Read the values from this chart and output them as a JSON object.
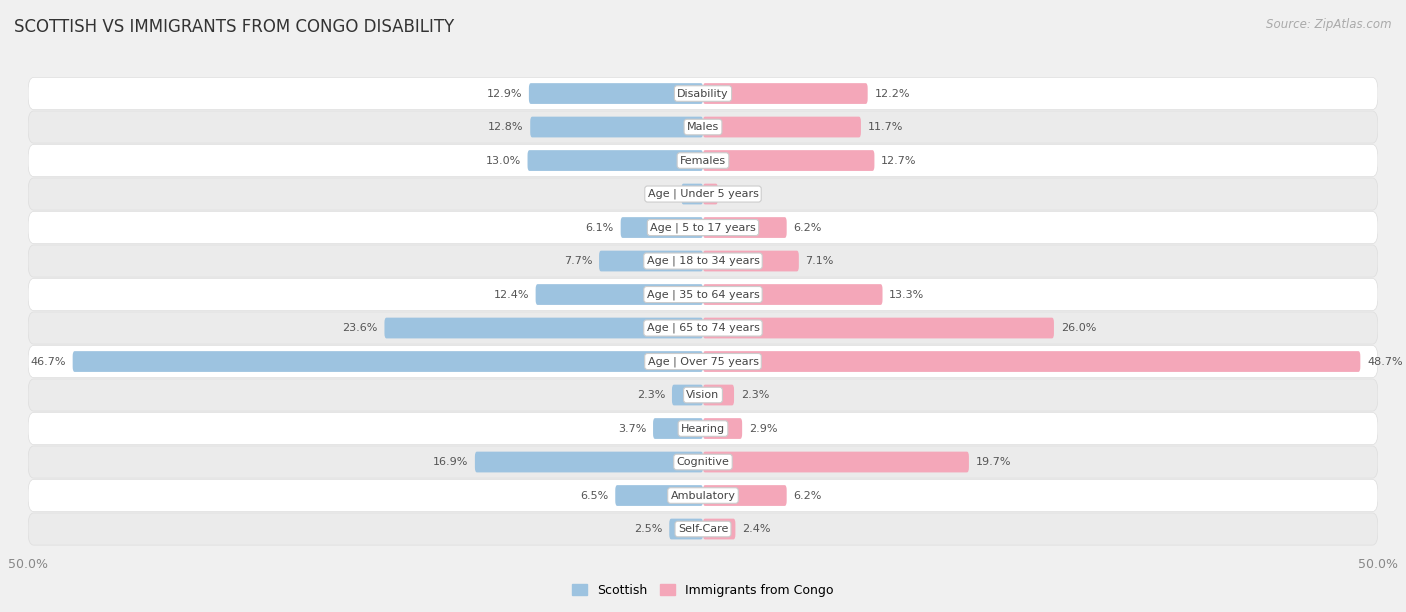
{
  "title": "SCOTTISH VS IMMIGRANTS FROM CONGO DISABILITY",
  "source": "Source: ZipAtlas.com",
  "categories": [
    "Disability",
    "Males",
    "Females",
    "Age | Under 5 years",
    "Age | 5 to 17 years",
    "Age | 18 to 34 years",
    "Age | 35 to 64 years",
    "Age | 65 to 74 years",
    "Age | Over 75 years",
    "Vision",
    "Hearing",
    "Cognitive",
    "Ambulatory",
    "Self-Care"
  ],
  "scottish": [
    12.9,
    12.8,
    13.0,
    1.6,
    6.1,
    7.7,
    12.4,
    23.6,
    46.7,
    2.3,
    3.7,
    16.9,
    6.5,
    2.5
  ],
  "congo": [
    12.2,
    11.7,
    12.7,
    1.1,
    6.2,
    7.1,
    13.3,
    26.0,
    48.7,
    2.3,
    2.9,
    19.7,
    6.2,
    2.4
  ],
  "scottish_color": "#9dc3e0",
  "congo_color": "#f4a7b9",
  "axis_max": 50.0,
  "bg_white": "#f9f9f9",
  "bg_gray": "#eeeeee",
  "row_bg": "#e8e8e8",
  "title_fontsize": 12,
  "label_fontsize": 8.0,
  "bar_height": 0.62
}
